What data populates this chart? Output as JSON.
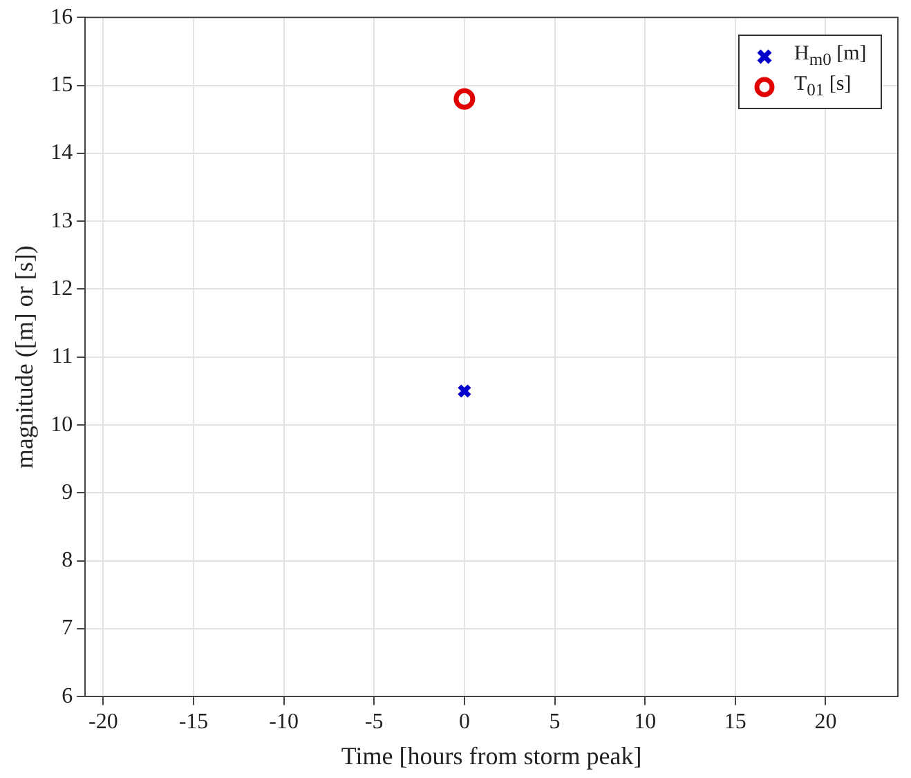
{
  "chart_data": {
    "type": "scatter",
    "xlabel": "Time [hours from storm peak]",
    "ylabel": "magnitude ([m] or [s])",
    "series": [
      {
        "name": "H$_{m0}$ [m]",
        "color": "#0000cc",
        "marker": "cross",
        "x": [
          0
        ],
        "values": [
          10.5
        ]
      },
      {
        "name": "T$_{01}$ [s]",
        "color": "#e00000",
        "marker": "circle",
        "x": [
          0
        ],
        "values": [
          14.8
        ]
      }
    ],
    "xlim": [
      -21,
      24
    ],
    "xticks": [
      -20,
      -15,
      -10,
      -5,
      0,
      5,
      10,
      15,
      20
    ],
    "ylim": [
      6,
      16
    ],
    "yticks": [
      6,
      7,
      8,
      9,
      10,
      11,
      12,
      13,
      14,
      15,
      16
    ],
    "grid": true,
    "legend": "top right"
  }
}
